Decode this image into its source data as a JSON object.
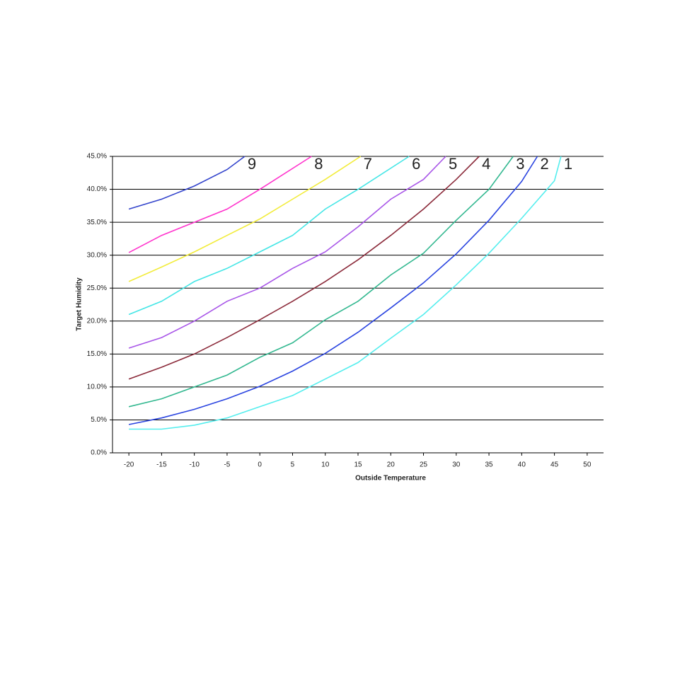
{
  "chart_data": {
    "type": "line",
    "y_label": "Target Humidity",
    "x_label": "Outside Temperature",
    "xlim": [
      -22.5,
      52.5
    ],
    "xticks": [
      -20,
      -15,
      -10,
      -5,
      0,
      5,
      10,
      15,
      20,
      25,
      30,
      35,
      40,
      45,
      50
    ],
    "ylim": [
      0,
      45
    ],
    "yticks": [
      {
        "value": 0,
        "label": "0.0%"
      },
      {
        "value": 5,
        "label": "5.0%"
      },
      {
        "value": 10,
        "label": "10.0%"
      },
      {
        "value": 15,
        "label": "15.0%"
      },
      {
        "value": 20,
        "label": "20.0%"
      },
      {
        "value": 25,
        "label": "25.0%"
      },
      {
        "value": 30,
        "label": "30.0%"
      },
      {
        "value": 35,
        "label": "35.0%"
      },
      {
        "value": 40,
        "label": "40.0%"
      },
      {
        "value": 45,
        "label": "45.0%"
      }
    ],
    "grid": true,
    "series": [
      {
        "name": "9",
        "color": "#3344cc",
        "x": [
          -20,
          -15,
          -10,
          -5,
          -2.3
        ],
        "values": [
          37,
          38.5,
          40.5,
          43,
          45
        ]
      },
      {
        "name": "8",
        "color": "#ff33cc",
        "x": [
          -20,
          -15,
          -10,
          -5,
          0,
          7.9
        ],
        "values": [
          30.4,
          33,
          35,
          37,
          40,
          45
        ]
      },
      {
        "name": "7",
        "color": "#f2ec3a",
        "x": [
          -20,
          -15,
          -10,
          -5,
          0,
          5,
          10,
          15.4
        ],
        "values": [
          26,
          28.2,
          30.5,
          33,
          35.5,
          38.5,
          41.5,
          45
        ]
      },
      {
        "name": "6",
        "color": "#44e6e6",
        "x": [
          -20,
          -15,
          -10,
          -5,
          0,
          5,
          10,
          15,
          22.8
        ],
        "values": [
          21,
          23,
          26,
          28,
          30.5,
          33,
          37,
          40,
          45
        ]
      },
      {
        "name": "5",
        "color": "#a855e8",
        "x": [
          -20,
          -15,
          -10,
          -5,
          0,
          5,
          10,
          15,
          20,
          25,
          28.4
        ],
        "values": [
          15.9,
          17.5,
          20,
          23,
          25,
          28,
          30.5,
          34.3,
          38.5,
          41.5,
          45
        ]
      },
      {
        "name": "4",
        "color": "#8b2a3a",
        "x": [
          -20,
          -15,
          -10,
          -5,
          0,
          5,
          10,
          15,
          20,
          25,
          30,
          33.5
        ],
        "values": [
          11.2,
          13,
          15,
          17.5,
          20.2,
          23,
          26,
          29.3,
          33,
          37,
          41.5,
          45
        ]
      },
      {
        "name": "3",
        "color": "#33b890",
        "x": [
          -20,
          -15,
          -10,
          -5,
          0,
          5,
          10,
          15,
          20,
          25,
          30,
          35,
          38.7
        ],
        "values": [
          7,
          8.2,
          10,
          11.8,
          14.5,
          16.7,
          20.2,
          23,
          27,
          30.3,
          35.3,
          40,
          45
        ]
      },
      {
        "name": "2",
        "color": "#2a44e0",
        "x": [
          -20,
          -15,
          -10,
          -5,
          0,
          5,
          10,
          15,
          20,
          25,
          30,
          35,
          40,
          42.4
        ],
        "values": [
          4.3,
          5.3,
          6.6,
          8.2,
          10.1,
          12.4,
          15.1,
          18.3,
          22,
          25.8,
          30.2,
          35.3,
          41.2,
          45
        ]
      },
      {
        "name": "1",
        "color": "#55eeee",
        "x": [
          -20,
          -15,
          -10,
          -5,
          0,
          5,
          10,
          15,
          20,
          25,
          30,
          35,
          40,
          45,
          46
        ],
        "values": [
          3.6,
          3.6,
          4.2,
          5.3,
          7,
          8.7,
          11.2,
          13.7,
          17.4,
          21,
          25.5,
          30.3,
          35.6,
          41.3,
          45
        ]
      }
    ]
  }
}
